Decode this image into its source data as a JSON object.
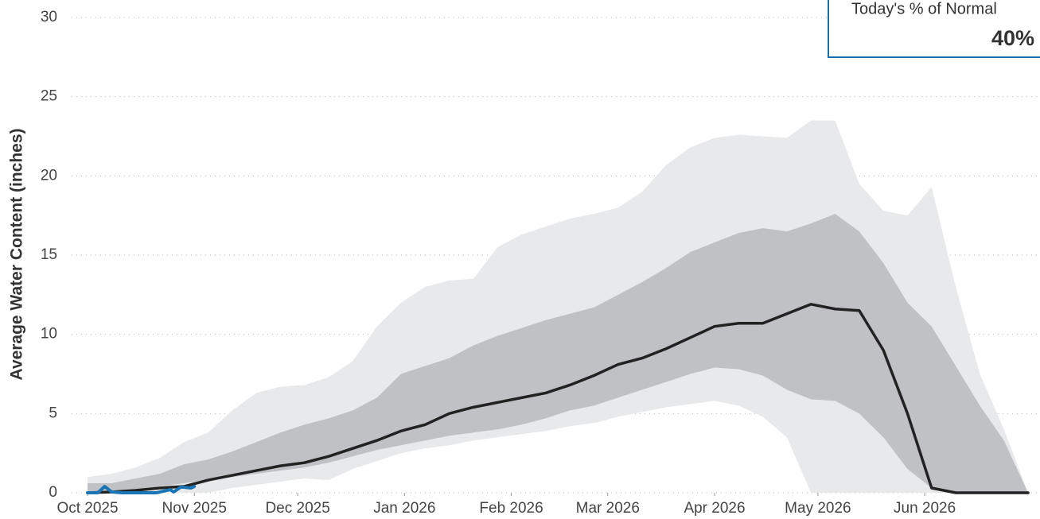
{
  "chart_data": {
    "type": "area",
    "y_label": "Average Water Content (inches)",
    "annotation": {
      "title": "Today's % of Normal",
      "value": 40,
      "value_label": "40%",
      "border_color": "#1a6fa8"
    },
    "x": [
      0,
      7,
      14,
      21,
      28,
      35,
      42,
      49,
      56,
      63,
      70,
      77,
      84,
      91,
      98,
      105,
      112,
      119,
      126,
      133,
      140,
      147,
      154,
      161,
      168,
      175,
      182,
      189,
      196,
      203,
      210,
      217,
      224,
      231,
      238,
      245,
      252,
      259,
      266,
      273
    ],
    "bands": [
      {
        "color": "#e8e9eb",
        "upper": [
          1,
          1.2,
          1.6,
          2.2,
          3.2,
          3.8,
          5.2,
          6.3,
          6.7,
          6.8,
          7.3,
          8.3,
          10.5,
          12,
          13,
          13.4,
          13.5,
          15.5,
          16.3,
          16.8,
          17.3,
          17.6,
          18,
          19,
          20.7,
          21.8,
          22.4,
          22.6,
          22.5,
          22.4,
          23.5,
          23.5,
          19.5,
          17.8,
          17.5,
          19.3,
          13,
          7.5,
          4,
          0
        ],
        "lower": [
          0,
          0,
          0,
          0,
          0,
          0,
          0.3,
          0.5,
          0.7,
          0.9,
          0.8,
          1.5,
          2,
          2.5,
          2.8,
          3,
          3.3,
          3.5,
          3.7,
          3.9,
          4.2,
          4.4,
          4.8,
          5.1,
          5.4,
          5.6,
          5.8,
          5.5,
          4.8,
          3.5,
          0,
          0,
          0,
          0,
          0,
          0,
          0,
          0,
          0,
          0
        ]
      },
      {
        "color": "#c0c1c4",
        "upper": [
          0.6,
          0.6,
          0.9,
          1.2,
          1.8,
          2.1,
          2.6,
          3.2,
          3.8,
          4.3,
          4.7,
          5.2,
          6,
          7.5,
          8,
          8.5,
          9.3,
          9.9,
          10.4,
          10.9,
          11.3,
          11.7,
          12.5,
          13.3,
          14.2,
          15.2,
          15.8,
          16.4,
          16.7,
          16.5,
          17,
          17.6,
          16.5,
          14.5,
          12,
          10.5,
          8,
          5.5,
          3.3,
          0
        ],
        "lower": [
          0,
          0.1,
          0.2,
          0.4,
          0.6,
          0.8,
          1,
          1.2,
          1.4,
          1.6,
          1.9,
          2.3,
          2.7,
          3,
          3.3,
          3.6,
          3.8,
          4,
          4.3,
          4.7,
          5.2,
          5.5,
          6,
          6.5,
          7,
          7.5,
          7.9,
          7.8,
          7.4,
          6.5,
          5.9,
          5.8,
          5,
          3.5,
          1.5,
          0.3,
          0,
          0,
          0,
          0
        ]
      }
    ],
    "series": [
      {
        "color": "#222222",
        "values": [
          0,
          0.05,
          0.15,
          0.3,
          0.4,
          0.8,
          1.1,
          1.4,
          1.7,
          1.9,
          2.3,
          2.8,
          3.3,
          3.9,
          4.3,
          5,
          5.4,
          5.7,
          6,
          6.3,
          6.8,
          7.4,
          8.1,
          8.5,
          9.1,
          9.8,
          10.5,
          10.7,
          10.7,
          11.3,
          11.9,
          11.6,
          11.5,
          9,
          5,
          0.3,
          0,
          0,
          0,
          0
        ]
      },
      {
        "color": "#1a75b5",
        "x": [
          0,
          3,
          5,
          7,
          10,
          14,
          20,
          24,
          25,
          27,
          28,
          30,
          31
        ],
        "values": [
          0,
          0,
          0.4,
          0.05,
          0,
          0,
          0,
          0.2,
          0.05,
          0.35,
          0.35,
          0.3,
          0.4
        ]
      }
    ],
    "xlim": [
      0,
      276
    ],
    "xticks": [
      {
        "value": 0,
        "label": "Oct 2025"
      },
      {
        "value": 31,
        "label": "Nov 2025"
      },
      {
        "value": 61,
        "label": "Dec 2025"
      },
      {
        "value": 92,
        "label": "Jan 2026"
      },
      {
        "value": 123,
        "label": "Feb 2026"
      },
      {
        "value": 151,
        "label": "Mar 2026"
      },
      {
        "value": 182,
        "label": "Apr 2026"
      },
      {
        "value": 212,
        "label": "May 2026"
      },
      {
        "value": 243,
        "label": "Jun 2026"
      }
    ],
    "ylim": [
      0,
      30
    ],
    "yticks": [
      0,
      5,
      10,
      15,
      20,
      25,
      30
    ],
    "grid": true
  }
}
